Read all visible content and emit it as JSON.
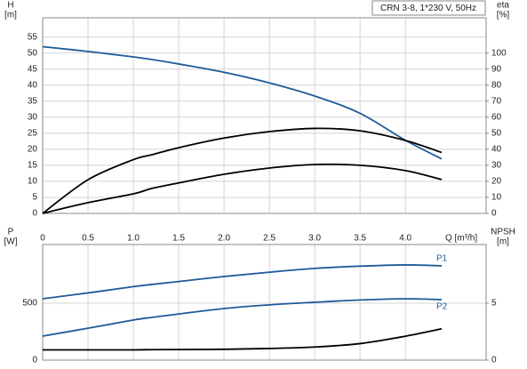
{
  "chart_data": [
    {
      "type": "line",
      "title": "CRN 3-8, 1*230 V, 50Hz",
      "ylabel": [
        "H",
        "[m]"
      ],
      "y2label": [
        "eta",
        "[%]"
      ],
      "xlabel": "Q [m³/h]",
      "x": [
        0,
        0.5,
        1.0,
        1.2,
        1.5,
        2.0,
        2.5,
        3.0,
        3.5,
        4.0,
        4.4
      ],
      "xlim": [
        0,
        4.89
      ],
      "xticks": [
        0,
        0.5,
        {
          "value": 1,
          "label": "1.0"
        },
        1.5,
        {
          "value": 2,
          "label": "2.0"
        },
        2.5,
        {
          "value": 3,
          "label": "3.0"
        },
        3.5,
        {
          "value": 4,
          "label": "4.0"
        }
      ],
      "ylim": [
        0,
        61
      ],
      "yticks": [
        0,
        5,
        10,
        15,
        20,
        25,
        30,
        35,
        40,
        45,
        50,
        55
      ],
      "y2lim": [
        0,
        122
      ],
      "y2ticks": [
        0,
        10,
        20,
        30,
        40,
        50,
        60,
        70,
        80,
        90,
        100
      ],
      "grid": true,
      "series": [
        {
          "color": "#1f5b99",
          "values": [
            52,
            50.5,
            48.8,
            48,
            46.6,
            44,
            40.7,
            36.6,
            31.2,
            22.8,
            17
          ]
        },
        {
          "color": "#000000",
          "axis": "y2",
          "values": [
            0,
            21,
            33.5,
            36.5,
            41,
            47,
            51,
            53,
            51.5,
            45.5,
            38
          ]
        },
        {
          "color": "#000000",
          "axis": "y2",
          "values": [
            0,
            6.7,
            12.2,
            15.5,
            19,
            24.4,
            28.3,
            30.5,
            30,
            26.7,
            21.1
          ]
        }
      ]
    },
    {
      "type": "line",
      "ylabel": [
        "P",
        "[W]"
      ],
      "y2label": [
        "NPSH",
        "[m]"
      ],
      "x": [
        0,
        0.5,
        1.0,
        1.2,
        1.5,
        2.0,
        2.5,
        3.0,
        3.5,
        4.0,
        4.4
      ],
      "xlim": [
        0,
        4.89
      ],
      "xticks": [
        0,
        0.5,
        1,
        1.5,
        2,
        2.5,
        3,
        3.5,
        4
      ],
      "ylim": [
        0,
        1015
      ],
      "yticks": [
        0,
        500
      ],
      "y2lim": [
        0,
        10.15
      ],
      "y2ticks": [
        0,
        5
      ],
      "grid": true,
      "series": [
        {
          "name": "P1",
          "color": "#1f5b99",
          "values": [
            539,
            590,
            645,
            664,
            690,
            734,
            772,
            805,
            825,
            836,
            828
          ]
        },
        {
          "name": "P2",
          "color": "#1f5b99",
          "values": [
            211,
            280,
            352,
            375,
            405,
            453,
            485,
            508,
            528,
            539,
            531
          ]
        },
        {
          "color": "#000000",
          "axis": "y2",
          "values": [
            0.9,
            0.9,
            0.9,
            0.92,
            0.93,
            0.95,
            1.02,
            1.15,
            1.45,
            2.1,
            2.75
          ]
        }
      ]
    }
  ]
}
